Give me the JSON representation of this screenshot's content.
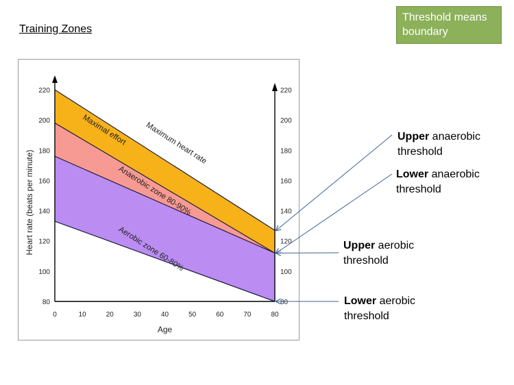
{
  "slide": {
    "title": "Training Zones",
    "note": "Threshold means boundary"
  },
  "callouts": [
    {
      "bold": "Upper",
      "rest": " anaerobic",
      "line2": "threshold",
      "heart_rate": 127
    },
    {
      "bold": "Lower",
      "rest": " anaerobic",
      "line2": "threshold",
      "heart_rate": 112
    },
    {
      "bold": "Upper",
      "rest": " aerobic",
      "line2": "threshold",
      "heart_rate": 112
    },
    {
      "bold": "Lower",
      "rest": " aerobic",
      "line2": "threshold",
      "heart_rate": 80
    }
  ],
  "colors": {
    "maximal": "#f7b21a",
    "anaerobic": "#f79a94",
    "aerobic": "#bb8cf2",
    "arrow": "#3b5f9a",
    "note_box": "#8cb15a"
  },
  "chart_data": {
    "type": "area",
    "xlabel": "Age",
    "ylabel": "Heart rate (beats per minute)",
    "xlim": [
      0,
      80
    ],
    "ylim": [
      80,
      220
    ],
    "x_ticks": [
      0,
      10,
      20,
      30,
      40,
      50,
      60,
      70,
      80
    ],
    "y_ticks": [
      80,
      100,
      120,
      140,
      160,
      180,
      200,
      220
    ],
    "right_y_ticks": [
      80,
      100,
      120,
      140,
      160,
      180,
      200,
      220
    ],
    "x": [
      0,
      80
    ],
    "lines": [
      {
        "name": "Maximum heart rate",
        "values": [
          220,
          127
        ]
      },
      {
        "name": "boundary 90%",
        "values": [
          198,
          112
        ]
      },
      {
        "name": "boundary 80%",
        "values": [
          176,
          112
        ]
      },
      {
        "name": "boundary 60%",
        "values": [
          133,
          80
        ]
      }
    ],
    "bands": [
      {
        "name": "Maximal effort",
        "upper": [
          220,
          127
        ],
        "lower": [
          198,
          112
        ],
        "color": "#f7b21a"
      },
      {
        "name": "Anaerobic zone 80-90%",
        "upper": [
          198,
          112
        ],
        "lower": [
          176,
          112
        ],
        "color": "#f79a94"
      },
      {
        "name": "Aerobic zone 60-80%",
        "upper": [
          176,
          112
        ],
        "lower": [
          133,
          80
        ],
        "color": "#bb8cf2"
      }
    ],
    "labels": [
      {
        "text": "Maximal effort",
        "x": 8,
        "y": 200
      },
      {
        "text": "Maximum heart rate",
        "x": 40,
        "y": 195
      },
      {
        "text": "Anaerobic zone 80-90%",
        "x": 30,
        "y": 166
      },
      {
        "text": "Aerobic zone 60-80%",
        "x": 30,
        "y": 126
      }
    ]
  }
}
